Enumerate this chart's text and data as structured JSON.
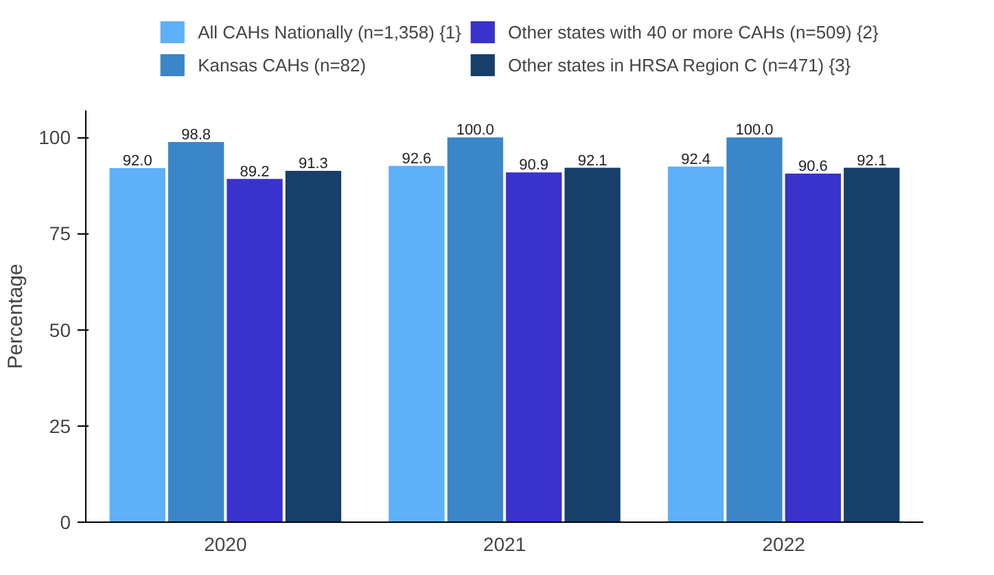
{
  "chart_data": {
    "type": "bar",
    "ylabel": "Percentage",
    "categories": [
      "2020",
      "2021",
      "2022"
    ],
    "series": [
      {
        "name": "All CAHs Nationally (n=1,358) {1}",
        "color": "#5eb0f8",
        "values": [
          92.0,
          92.6,
          92.4
        ],
        "value_labels": [
          "92.0",
          "92.6",
          "92.4"
        ]
      },
      {
        "name": "Kansas CAHs (n=82)",
        "color": "#3a86c8",
        "values": [
          98.8,
          100.0,
          100.0
        ],
        "value_labels": [
          "98.8",
          "100.0",
          "100.0"
        ]
      },
      {
        "name": "Other states with 40 or more CAHs (n=509) {2}",
        "color": "#3a32cc",
        "values": [
          89.2,
          90.9,
          90.6
        ],
        "value_labels": [
          "89.2",
          "90.9",
          "90.6"
        ]
      },
      {
        "name": "Other states in HRSA Region C (n=471) {3}",
        "color": "#173f6a",
        "values": [
          91.3,
          92.1,
          92.1
        ],
        "value_labels": [
          "91.3",
          "92.1",
          "92.1"
        ]
      }
    ],
    "ylim": [
      0,
      107
    ],
    "yticks": [
      0,
      25,
      50,
      75,
      100
    ],
    "grid": false,
    "legend": "top"
  }
}
